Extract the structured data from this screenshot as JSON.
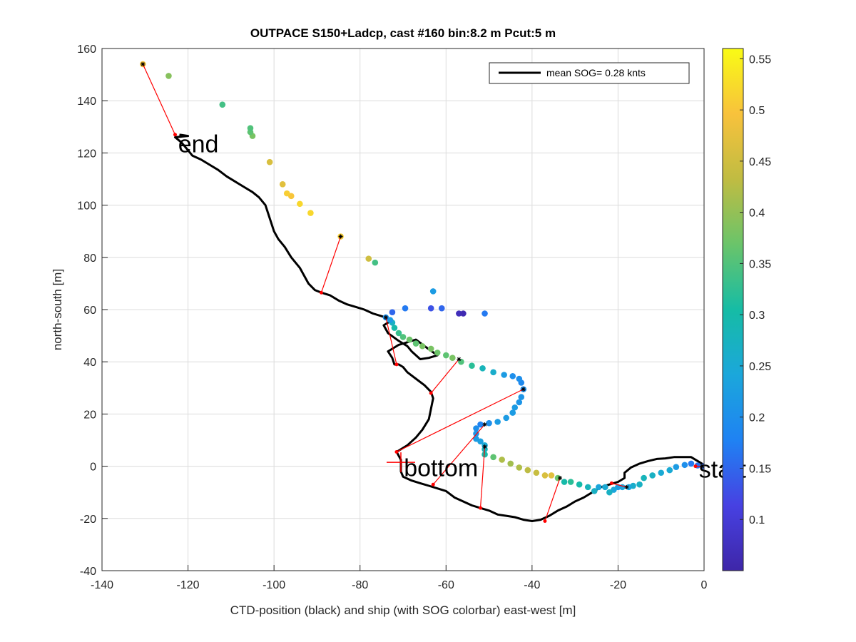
{
  "chart_data": {
    "type": "scatter",
    "title": "OUTPACE S150+Ladcp, cast #160 bin:8.2 m  Pcut:5 m",
    "xlabel": "CTD-position (black) and ship (with SOG colorbar) east-west [m]",
    "ylabel": "north-south [m]",
    "xlim": [
      -140,
      0
    ],
    "ylim": [
      -40,
      160
    ],
    "xticks": [
      "-140",
      "-120",
      "-100",
      "-80",
      "-60",
      "-40",
      "-20",
      "0"
    ],
    "yticks": [
      "-40",
      "-20",
      "0",
      "20",
      "40",
      "60",
      "80",
      "100",
      "120",
      "140",
      "160"
    ],
    "grid": true,
    "legend": {
      "location": "top-right",
      "entries": [
        "mean SOG=  0.28 knts"
      ]
    },
    "colorbar": {
      "label_values": [
        0.1,
        0.15,
        0.2,
        0.25,
        0.3,
        0.35,
        0.4,
        0.45,
        0.5,
        0.55
      ],
      "tick_labels": [
        "0.1",
        "0.15",
        "0.2",
        "0.25",
        "0.3",
        "0.35",
        "0.4",
        "0.45",
        "0.5",
        "0.55"
      ],
      "range": [
        0.05,
        0.56
      ],
      "colormap": "parula"
    },
    "annotations": [
      {
        "text": "end",
        "x": -122.3,
        "y": 123.5
      },
      {
        "text": "bottom",
        "x": -69.8,
        "y": -0.5
      },
      {
        "text": "start",
        "x": -1.2,
        "y": -1.0
      }
    ],
    "bottom_marker": {
      "x": -70.5,
      "y": 1.5
    },
    "ctd_track": {
      "name": "CTD-position",
      "color": "#000000",
      "points": [
        [
          0,
          0.5
        ],
        [
          -1.5,
          2.0
        ],
        [
          -3.0,
          3.5
        ],
        [
          -5.0,
          3.5
        ],
        [
          -7.0,
          3.5
        ],
        [
          -9.0,
          3.0
        ],
        [
          -11.0,
          2.8
        ],
        [
          -13.0,
          2.0
        ],
        [
          -15.0,
          1.0
        ],
        [
          -17.0,
          -0.5
        ],
        [
          -18.5,
          -2.5
        ],
        [
          -18.5,
          -4.5
        ],
        [
          -20.0,
          -6.0
        ],
        [
          -22.0,
          -7.0
        ],
        [
          -24.0,
          -8.0
        ],
        [
          -26.0,
          -10.0
        ],
        [
          -28.0,
          -12.0
        ],
        [
          -30.0,
          -13.5
        ],
        [
          -32.0,
          -15.5
        ],
        [
          -34.0,
          -17.0
        ],
        [
          -36.0,
          -19.0
        ],
        [
          -38.0,
          -20.5
        ],
        [
          -40.0,
          -21.0
        ],
        [
          -42.0,
          -20.5
        ],
        [
          -44.0,
          -19.5
        ],
        [
          -46.0,
          -19.0
        ],
        [
          -48.0,
          -18.5
        ],
        [
          -50.0,
          -17.0
        ],
        [
          -52.0,
          -16.0
        ],
        [
          -54.0,
          -15.0
        ],
        [
          -56.0,
          -13.5
        ],
        [
          -58.0,
          -12.0
        ],
        [
          -60.0,
          -9.5
        ],
        [
          -62.0,
          -8.5
        ],
        [
          -64.0,
          -7.5
        ],
        [
          -66.0,
          -6.5
        ],
        [
          -68.0,
          -5.5
        ],
        [
          -70.0,
          -4.0
        ],
        [
          -70.5,
          -2.0
        ],
        [
          -70.5,
          0.5
        ],
        [
          -70.5,
          2.5
        ],
        [
          -71.5,
          5.5
        ],
        [
          -69.0,
          8.0
        ],
        [
          -67.0,
          11.0
        ],
        [
          -65.5,
          14.0
        ],
        [
          -64.0,
          18.0
        ],
        [
          -63.5,
          22.0
        ],
        [
          -63.0,
          26.0
        ],
        [
          -63.5,
          28.5
        ],
        [
          -65.0,
          31.0
        ],
        [
          -67.0,
          33.5
        ],
        [
          -69.0,
          36.0
        ],
        [
          -70.0,
          38.0
        ],
        [
          -71.0,
          39.0
        ],
        [
          -72.0,
          39.0
        ],
        [
          -72.5,
          41.5
        ],
        [
          -73.5,
          44.0
        ],
        [
          -71.0,
          46.5
        ],
        [
          -69.0,
          47.5
        ],
        [
          -67.0,
          48.5
        ],
        [
          -65.0,
          46.0
        ],
        [
          -62.0,
          42.5
        ],
        [
          -64.0,
          41.5
        ],
        [
          -66.0,
          41.0
        ],
        [
          -68.0,
          44.0
        ],
        [
          -69.0,
          46.0
        ],
        [
          -71.0,
          48.0
        ],
        [
          -73.5,
          51.0
        ],
        [
          -74.5,
          54.0
        ],
        [
          -72.5,
          56.0
        ],
        [
          -75.0,
          57.5
        ],
        [
          -77.0,
          58.5
        ],
        [
          -79.0,
          60.0
        ],
        [
          -81.0,
          61.0
        ],
        [
          -83.0,
          62.0
        ],
        [
          -85.0,
          63.5
        ],
        [
          -87.0,
          65.5
        ],
        [
          -89.0,
          66.5
        ],
        [
          -90.5,
          67.5
        ],
        [
          -92.0,
          70.0
        ],
        [
          -94.0,
          76.0
        ],
        [
          -96.0,
          80.0
        ],
        [
          -97.5,
          84.0
        ],
        [
          -99.0,
          87.0
        ],
        [
          -100.0,
          90.0
        ],
        [
          -101.0,
          95.0
        ],
        [
          -102.0,
          100.0
        ],
        [
          -103.5,
          103.0
        ],
        [
          -105.0,
          105.0
        ],
        [
          -107.0,
          107.0
        ],
        [
          -109.0,
          109.0
        ],
        [
          -111.0,
          111.0
        ],
        [
          -113.0,
          113.5
        ],
        [
          -115.0,
          115.5
        ],
        [
          -117.0,
          117.5
        ],
        [
          -119.0,
          119.0
        ],
        [
          -120.0,
          121.0
        ],
        [
          -121.5,
          124.0
        ],
        [
          -123.0,
          126.0
        ],
        [
          -120.0,
          126.5
        ],
        [
          -122.0,
          127.0
        ]
      ]
    },
    "ship_points": {
      "name": "ship SOG",
      "points": [
        [
          0.0,
          0.0,
          0.15
        ],
        [
          -1.5,
          0.3,
          0.16
        ],
        [
          -3.0,
          1.0,
          0.17
        ],
        [
          -4.5,
          0.5,
          0.2
        ],
        [
          -6.5,
          -0.3,
          0.22
        ],
        [
          -8.0,
          -1.5,
          0.25
        ],
        [
          -10.0,
          -2.5,
          0.25
        ],
        [
          -12.0,
          -3.5,
          0.27
        ],
        [
          -14.0,
          -4.5,
          0.28
        ],
        [
          -15.0,
          -7.0,
          0.27
        ],
        [
          -16.5,
          -7.5,
          0.26
        ],
        [
          -17.5,
          -8.0,
          0.24
        ],
        [
          -19.0,
          -8.0,
          0.24
        ],
        [
          -20.0,
          -8.0,
          0.22
        ],
        [
          -21.0,
          -9.0,
          0.24
        ],
        [
          -22.0,
          -10.0,
          0.27
        ],
        [
          -23.0,
          -8.0,
          0.25
        ],
        [
          -24.5,
          -8.0,
          0.24
        ],
        [
          -25.5,
          -9.5,
          0.27
        ],
        [
          -27.0,
          -8.0,
          0.28
        ],
        [
          -29.0,
          -7.0,
          0.3
        ],
        [
          -31.0,
          -6.0,
          0.32
        ],
        [
          -32.5,
          -6.0,
          0.3
        ],
        [
          -34.0,
          -4.5,
          0.37
        ],
        [
          -35.5,
          -3.5,
          0.47
        ],
        [
          -37.0,
          -3.5,
          0.46
        ],
        [
          -39.0,
          -2.5,
          0.44
        ],
        [
          -41.0,
          -1.5,
          0.43
        ],
        [
          -43.0,
          -0.5,
          0.42
        ],
        [
          -45.0,
          1.0,
          0.41
        ],
        [
          -47.0,
          2.5,
          0.42
        ],
        [
          -49.0,
          3.5,
          0.36
        ],
        [
          -51.0,
          4.5,
          0.3
        ],
        [
          -51.0,
          6.5,
          0.28
        ],
        [
          -51.0,
          8.0,
          0.25
        ],
        [
          -52.0,
          9.5,
          0.23
        ],
        [
          -53.0,
          10.5,
          0.22
        ],
        [
          -53.0,
          12.5,
          0.21
        ],
        [
          -53.0,
          14.5,
          0.2
        ],
        [
          -52.0,
          16.0,
          0.18
        ],
        [
          -50.0,
          16.5,
          0.2
        ],
        [
          -48.0,
          17.0,
          0.22
        ],
        [
          -46.0,
          18.5,
          0.22
        ],
        [
          -44.5,
          20.5,
          0.22
        ],
        [
          -44.0,
          22.5,
          0.22
        ],
        [
          -43.0,
          24.5,
          0.21
        ],
        [
          -42.5,
          26.5,
          0.21
        ],
        [
          -42.0,
          29.5,
          0.2
        ],
        [
          -42.5,
          32.0,
          0.19
        ],
        [
          -43.0,
          33.5,
          0.2
        ],
        [
          -44.5,
          34.5,
          0.2
        ],
        [
          -46.5,
          35.0,
          0.22
        ],
        [
          -49.0,
          36.0,
          0.26
        ],
        [
          -51.5,
          37.5,
          0.28
        ],
        [
          -54.0,
          38.5,
          0.32
        ],
        [
          -56.5,
          40.0,
          0.35
        ],
        [
          -58.5,
          41.5,
          0.38
        ],
        [
          -60.0,
          42.5,
          0.36
        ],
        [
          -62.0,
          43.5,
          0.37
        ],
        [
          -63.5,
          45.0,
          0.38
        ],
        [
          -65.5,
          46.0,
          0.38
        ],
        [
          -67.0,
          47.0,
          0.36
        ],
        [
          -68.5,
          48.5,
          0.37
        ],
        [
          -70.0,
          49.5,
          0.35
        ],
        [
          -71.0,
          51.0,
          0.33
        ],
        [
          -72.0,
          53.0,
          0.3
        ],
        [
          -72.5,
          55.0,
          0.27
        ],
        [
          -73.0,
          56.0,
          0.22
        ],
        [
          -74.0,
          57.0,
          0.2
        ],
        [
          -72.5,
          59.0,
          0.15
        ],
        [
          -69.5,
          60.5,
          0.17
        ],
        [
          -63.5,
          60.5,
          0.13
        ],
        [
          -61.0,
          60.5,
          0.15
        ],
        [
          -57.0,
          58.5,
          0.07
        ],
        [
          -56.0,
          58.5,
          0.06
        ],
        [
          -51.0,
          58.5,
          0.17
        ],
        [
          -63.0,
          67.0,
          0.22
        ],
        [
          -76.5,
          78.0,
          0.34
        ],
        [
          -78.0,
          79.5,
          0.45
        ],
        [
          -84.5,
          88.0,
          0.51
        ],
        [
          -91.5,
          97.0,
          0.52
        ],
        [
          -94.0,
          100.5,
          0.52
        ],
        [
          -96.0,
          103.5,
          0.5
        ],
        [
          -97.0,
          104.5,
          0.51
        ],
        [
          -98.0,
          108.0,
          0.47
        ],
        [
          -101.0,
          116.5,
          0.46
        ],
        [
          -105.0,
          126.5,
          0.38
        ],
        [
          -105.5,
          128.0,
          0.36
        ],
        [
          -105.5,
          129.5,
          0.35
        ],
        [
          -112.0,
          138.5,
          0.34
        ],
        [
          -124.5,
          149.5,
          0.39
        ],
        [
          -130.5,
          154.0,
          0.5
        ]
      ]
    },
    "highlighted_points": [
      [
        -130.5,
        154.0
      ],
      [
        -84.5,
        88.0
      ],
      [
        -74.0,
        57.0
      ],
      [
        -57.0,
        41.0
      ],
      [
        -42.0,
        29.5
      ],
      [
        -51.0,
        16.0
      ],
      [
        -51.0,
        7.5
      ],
      [
        -33.5,
        -4.5
      ],
      [
        -18.0,
        -8.0
      ],
      [
        -0.5,
        0.0
      ]
    ],
    "connector_lines": {
      "color": "#ff0000",
      "segments": [
        [
          [
            -130.5,
            154.0
          ],
          [
            -123.0,
            127.0
          ]
        ],
        [
          [
            -84.5,
            88.0
          ],
          [
            -89.0,
            66.5
          ]
        ],
        [
          [
            -74.0,
            57.0
          ],
          [
            -71.5,
            39.0
          ]
        ],
        [
          [
            -57.0,
            41.0
          ],
          [
            -63.5,
            28.0
          ]
        ],
        [
          [
            -42.0,
            29.5
          ],
          [
            -71.5,
            5.5
          ]
        ],
        [
          [
            -51.0,
            16.0
          ],
          [
            -63.0,
            -7.0
          ]
        ],
        [
          [
            -51.0,
            7.5
          ],
          [
            -52.0,
            -16.0
          ]
        ],
        [
          [
            -33.5,
            -4.5
          ],
          [
            -37.0,
            -21.0
          ]
        ],
        [
          [
            -18.0,
            -8.0
          ],
          [
            -21.5,
            -6.5
          ]
        ],
        [
          [
            -0.5,
            0.0
          ],
          [
            -2.0,
            0.0
          ]
        ]
      ]
    }
  }
}
